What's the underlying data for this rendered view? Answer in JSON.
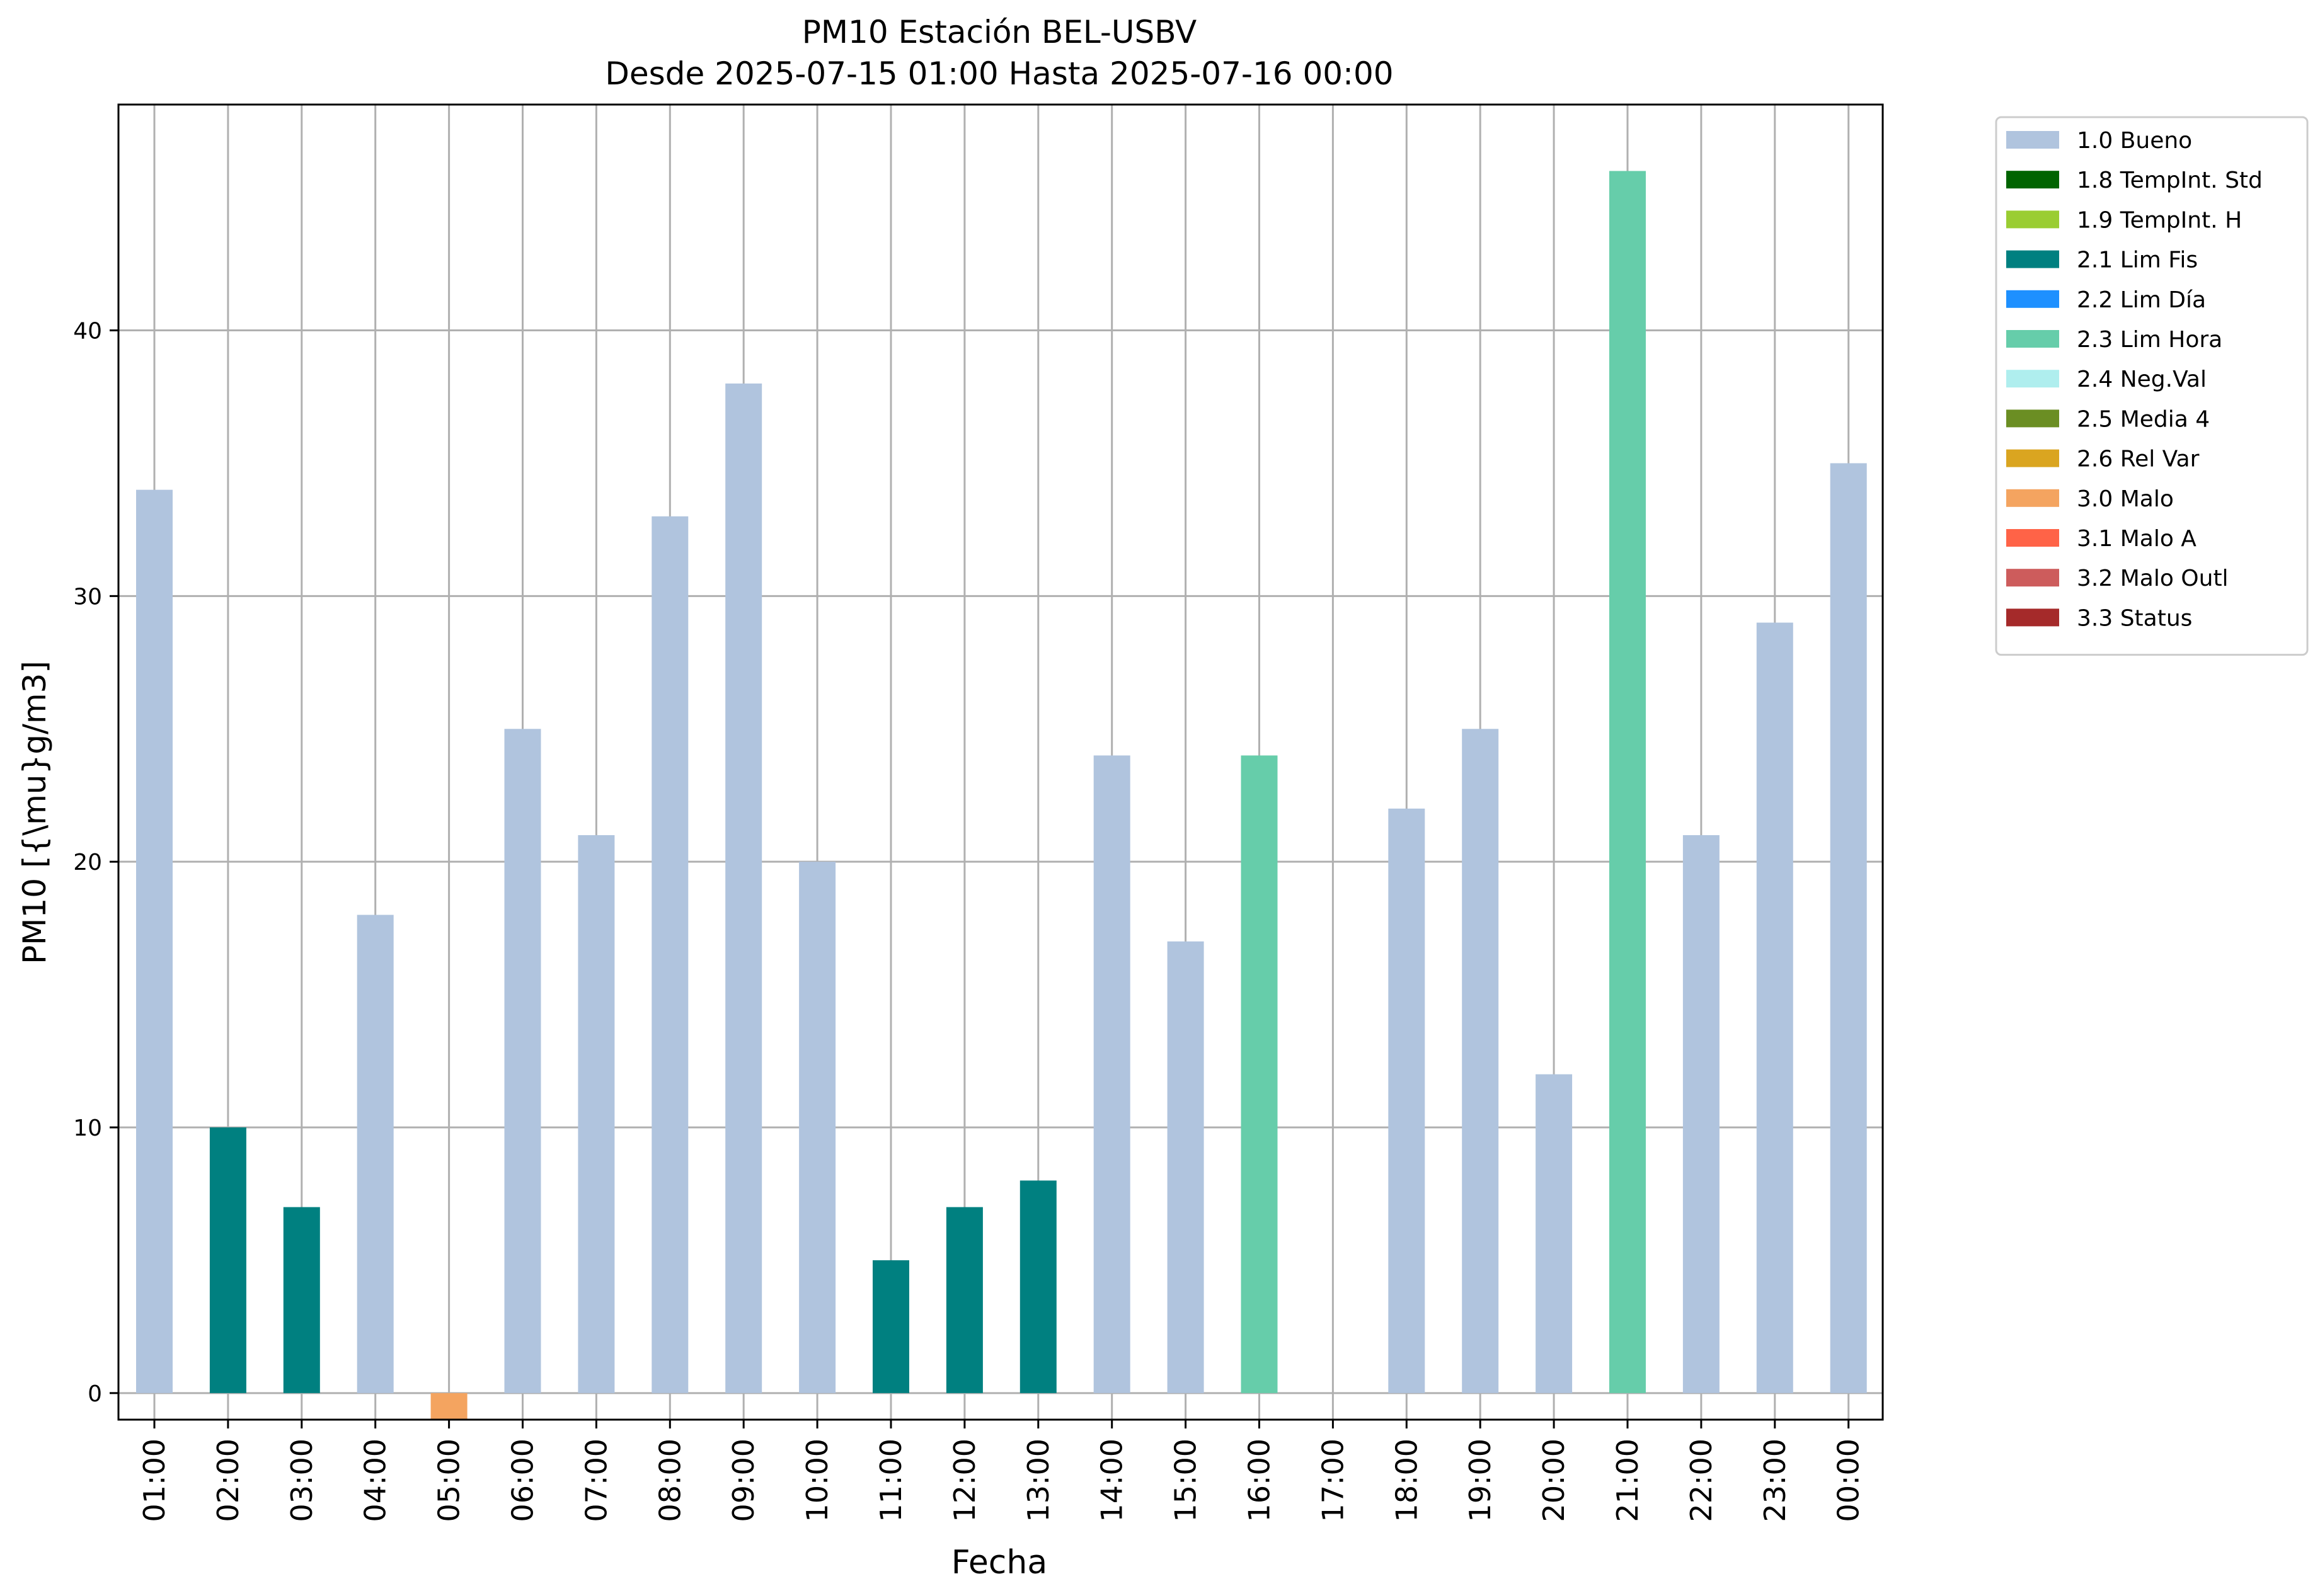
{
  "chart_data": {
    "type": "bar",
    "title": "PM10 Estación BEL-USBV",
    "subtitle": "Desde 2025-07-15 01:00 Hasta 2025-07-16 00:00",
    "xlabel": "Fecha",
    "ylabel": "PM10 [{\\mu}g/m3]",
    "ylim": [
      -1,
      48.5
    ],
    "yticks": [
      0,
      10,
      20,
      30,
      40
    ],
    "grid": true,
    "legend_position": "outside-right",
    "categories": [
      "01:00",
      "02:00",
      "03:00",
      "04:00",
      "05:00",
      "06:00",
      "07:00",
      "08:00",
      "09:00",
      "10:00",
      "11:00",
      "12:00",
      "13:00",
      "14:00",
      "15:00",
      "16:00",
      "17:00",
      "18:00",
      "19:00",
      "20:00",
      "21:00",
      "22:00",
      "23:00",
      "00:00"
    ],
    "values": [
      34,
      10,
      7,
      18,
      -1,
      25,
      21,
      33,
      38,
      20,
      5,
      7,
      8,
      24,
      17,
      24,
      null,
      22,
      25,
      12,
      46,
      21,
      29,
      35
    ],
    "flags": [
      "1.0 Bueno",
      "2.1 Lim Fis",
      "2.1 Lim Fis",
      "1.0 Bueno",
      "3.0 Malo",
      "1.0 Bueno",
      "1.0 Bueno",
      "1.0 Bueno",
      "1.0 Bueno",
      "1.0 Bueno",
      "2.1 Lim Fis",
      "2.1 Lim Fis",
      "2.1 Lim Fis",
      "1.0 Bueno",
      "1.0 Bueno",
      "2.3 Lim Hora",
      null,
      "1.0 Bueno",
      "1.0 Bueno",
      "1.0 Bueno",
      "2.3 Lim Hora",
      "1.0 Bueno",
      "1.0 Bueno",
      "1.0 Bueno"
    ],
    "legend": [
      {
        "label": "1.0 Bueno",
        "color": "#b0c4de"
      },
      {
        "label": "1.8 TempInt. Std",
        "color": "#006400"
      },
      {
        "label": "1.9 TempInt. H",
        "color": "#9acd32"
      },
      {
        "label": "2.1 Lim Fis",
        "color": "#008080"
      },
      {
        "label": "2.2 Lim Día",
        "color": "#1e90ff"
      },
      {
        "label": "2.3 Lim Hora",
        "color": "#66cdaa"
      },
      {
        "label": "2.4 Neg.Val",
        "color": "#afeeee"
      },
      {
        "label": "2.5 Media 4",
        "color": "#6b8e23"
      },
      {
        "label": "2.6 Rel Var",
        "color": "#daa520"
      },
      {
        "label": "3.0 Malo",
        "color": "#f4a460"
      },
      {
        "label": "3.1 Malo A",
        "color": "#ff6347"
      },
      {
        "label": "3.2 Malo Outl",
        "color": "#cd5c5c"
      },
      {
        "label": "3.3 Status",
        "color": "#a52a2a"
      }
    ]
  }
}
